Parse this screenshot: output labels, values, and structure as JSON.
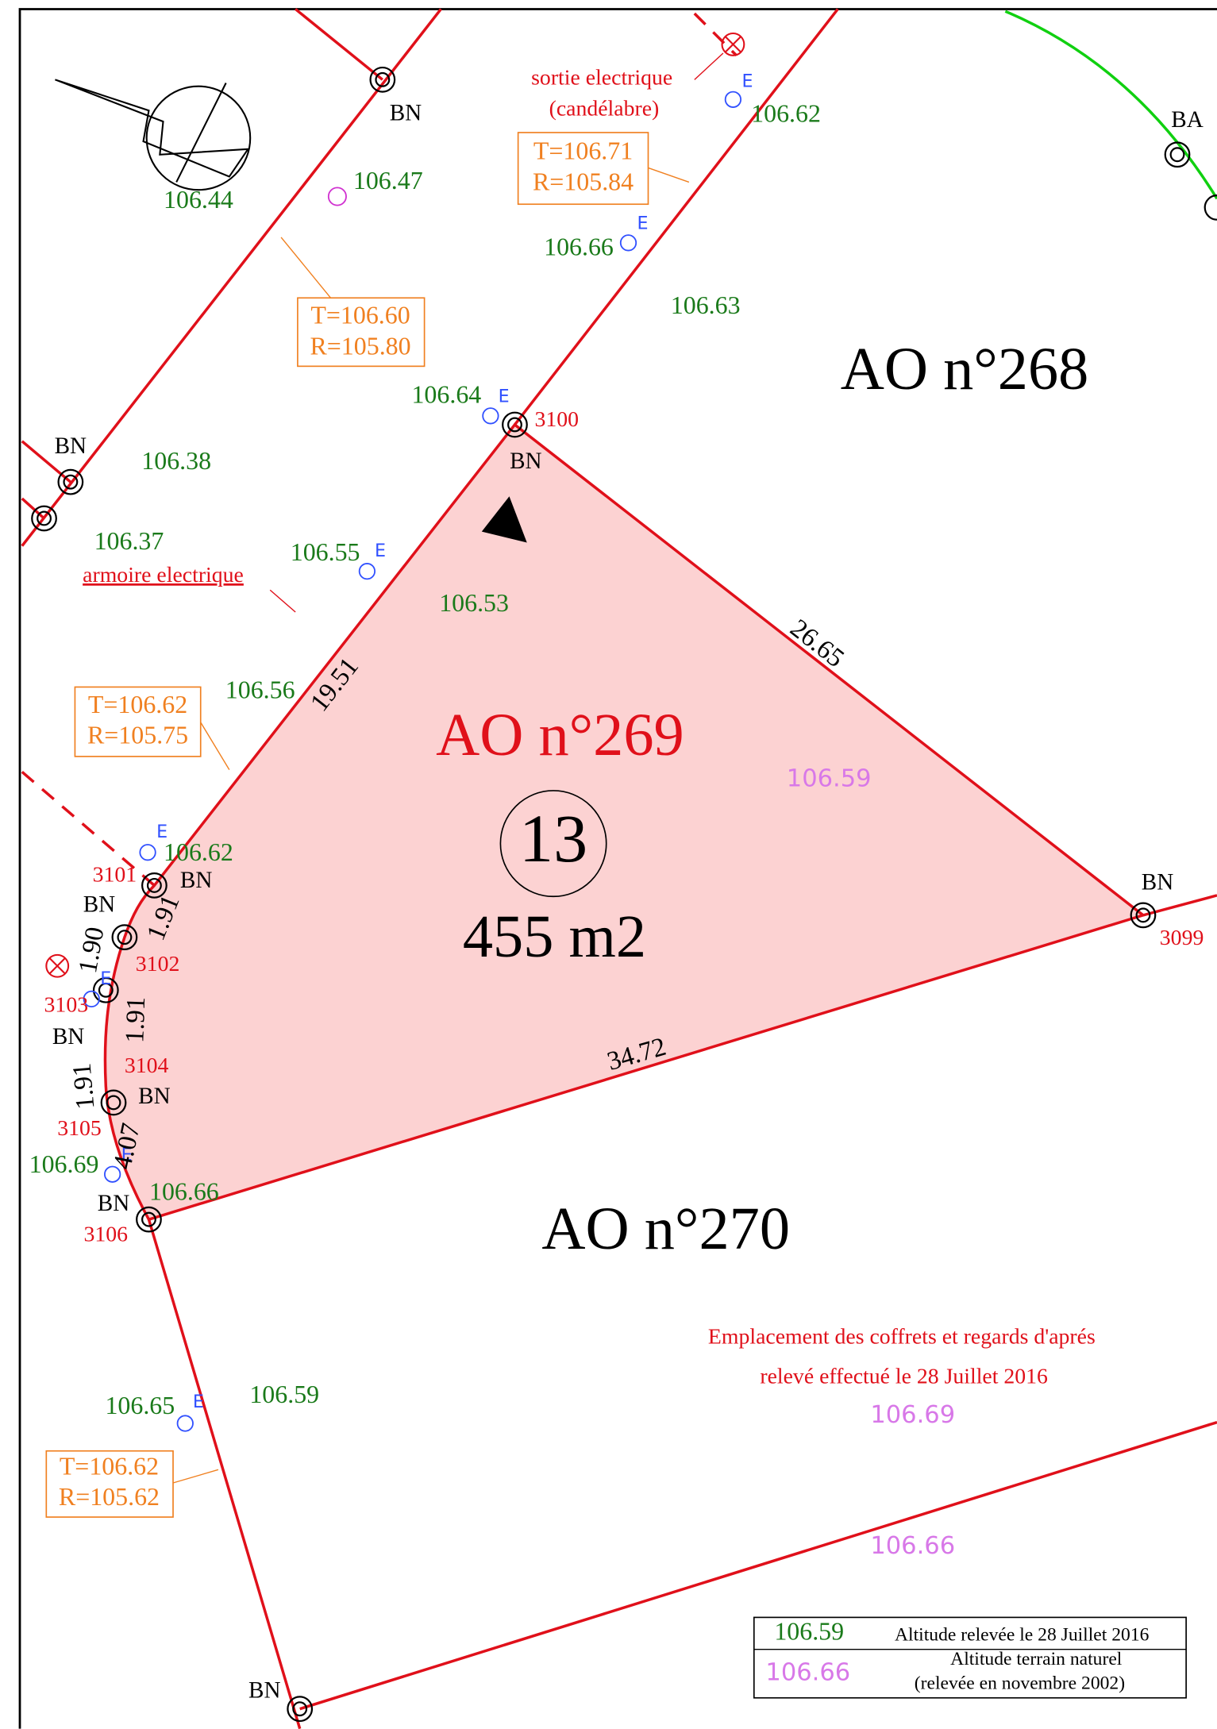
{
  "parcels": {
    "ao_268": "AO n°268",
    "ao_269": "AO n°269",
    "ao_270": "AO n°270"
  },
  "lot": {
    "number": "13",
    "area": "455 m2"
  },
  "dimensions": [
    "26.65",
    "19.51",
    "34.72",
    "1.91",
    "1.90",
    "1.91",
    "1.91",
    "4.07"
  ],
  "stations": [
    "3100",
    "3101",
    "3102",
    "3103",
    "3104",
    "3105",
    "3106",
    "3099"
  ],
  "markers": {
    "bn": "BN",
    "ba": "BA",
    "e": "E"
  },
  "altitudes_2016": [
    "106.44",
    "106.47",
    "106.62",
    "106.66",
    "106.63",
    "106.64",
    "106.38",
    "106.37",
    "106.55",
    "106.53",
    "106.56",
    "106.62",
    "106.69",
    "106.66",
    "106.65",
    "106.59"
  ],
  "altitudes_2002": [
    "106.59",
    "106.69",
    "106.66"
  ],
  "boxes": [
    {
      "t": "T=106.71",
      "r": "R=105.84"
    },
    {
      "t": "T=106.60",
      "r": "R=105.80"
    },
    {
      "t": "T=106.62",
      "r": "R=105.75"
    },
    {
      "t": "T=106.62",
      "r": "R=105.62"
    }
  ],
  "annotations": {
    "sortie": "sortie electrique",
    "candelabre": "(candélabre)",
    "armoire": "armoire electrique"
  },
  "note": [
    "Emplacement des coffrets et regards d'aprés",
    "relevé effectué le 28 Juillet 2016"
  ],
  "legend": [
    {
      "sample": "106.59",
      "text": [
        "Altitude relevée le 28 Juillet 2016"
      ]
    },
    {
      "sample": "106.66",
      "text": [
        "Altitude terrain naturel",
        "(relevée en novembre 2002)"
      ]
    }
  ]
}
